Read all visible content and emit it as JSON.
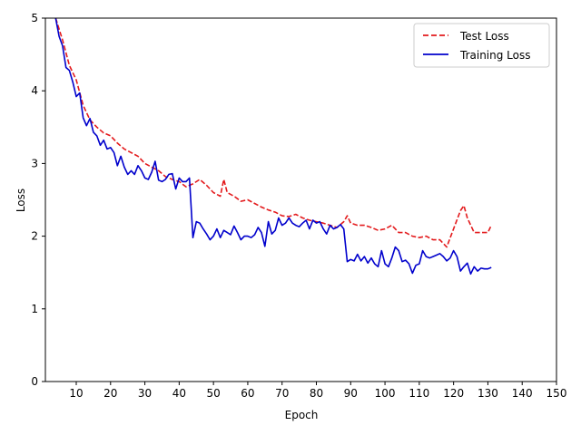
{
  "chart_data": {
    "type": "line",
    "title": "",
    "xlabel": "Epoch",
    "ylabel": "Loss",
    "xlim": [
      1,
      150
    ],
    "ylim": [
      0,
      5
    ],
    "xticks": [
      10,
      20,
      30,
      40,
      50,
      60,
      70,
      80,
      90,
      100,
      110,
      120,
      130,
      140,
      150
    ],
    "yticks": [
      0,
      1,
      2,
      3,
      4,
      5
    ],
    "grid": false,
    "legend_position": "top-right",
    "series": [
      {
        "name": "Test Loss",
        "color": "#e31a1c",
        "style": "dashed",
        "x": [
          4,
          6,
          8,
          10,
          12,
          14,
          16,
          18,
          20,
          22,
          24,
          26,
          28,
          30,
          32,
          34,
          36,
          38,
          40,
          42,
          44,
          46,
          48,
          50,
          52,
          53,
          54,
          56,
          58,
          60,
          62,
          64,
          66,
          68,
          70,
          72,
          74,
          76,
          78,
          80,
          82,
          84,
          86,
          88,
          89,
          90,
          92,
          94,
          96,
          98,
          100,
          102,
          104,
          106,
          108,
          110,
          112,
          114,
          116,
          118,
          120,
          122,
          123,
          124,
          126,
          128,
          130,
          131
        ],
        "values": [
          5.0,
          4.7,
          4.35,
          4.15,
          3.8,
          3.6,
          3.5,
          3.42,
          3.38,
          3.28,
          3.2,
          3.15,
          3.1,
          3.0,
          2.95,
          2.9,
          2.82,
          2.78,
          2.75,
          2.68,
          2.72,
          2.78,
          2.7,
          2.6,
          2.55,
          2.78,
          2.6,
          2.55,
          2.48,
          2.5,
          2.45,
          2.4,
          2.36,
          2.33,
          2.28,
          2.27,
          2.3,
          2.25,
          2.22,
          2.2,
          2.18,
          2.15,
          2.12,
          2.2,
          2.28,
          2.18,
          2.15,
          2.15,
          2.12,
          2.08,
          2.1,
          2.15,
          2.05,
          2.05,
          2.0,
          1.98,
          2.0,
          1.95,
          1.95,
          1.85,
          2.1,
          2.35,
          2.42,
          2.25,
          2.05,
          2.05,
          2.05,
          2.15
        ]
      },
      {
        "name": "Training Loss",
        "color": "#0000cc",
        "style": "solid",
        "x": [
          4,
          5,
          6,
          7,
          8,
          9,
          10,
          11,
          12,
          13,
          14,
          15,
          16,
          17,
          18,
          19,
          20,
          21,
          22,
          23,
          24,
          25,
          26,
          27,
          28,
          29,
          30,
          31,
          32,
          33,
          34,
          35,
          36,
          37,
          38,
          39,
          40,
          41,
          42,
          43,
          44,
          45,
          46,
          47,
          48,
          49,
          50,
          51,
          52,
          53,
          54,
          55,
          56,
          57,
          58,
          59,
          60,
          61,
          62,
          63,
          64,
          65,
          66,
          67,
          68,
          69,
          70,
          71,
          72,
          73,
          74,
          75,
          76,
          77,
          78,
          79,
          80,
          81,
          82,
          83,
          84,
          85,
          86,
          87,
          88,
          89,
          90,
          91,
          92,
          93,
          94,
          95,
          96,
          97,
          98,
          99,
          100,
          101,
          102,
          103,
          104,
          105,
          106,
          107,
          108,
          109,
          110,
          111,
          112,
          113,
          114,
          115,
          116,
          117,
          118,
          119,
          120,
          121,
          122,
          123,
          124,
          125,
          126,
          127,
          128,
          129,
          130,
          131
        ],
        "values": [
          5.0,
          4.75,
          4.62,
          4.32,
          4.28,
          4.12,
          3.92,
          3.97,
          3.63,
          3.52,
          3.62,
          3.43,
          3.38,
          3.25,
          3.32,
          3.2,
          3.22,
          3.15,
          2.97,
          3.1,
          2.95,
          2.85,
          2.9,
          2.85,
          2.97,
          2.9,
          2.8,
          2.78,
          2.88,
          3.03,
          2.77,
          2.75,
          2.78,
          2.85,
          2.86,
          2.65,
          2.8,
          2.75,
          2.75,
          2.8,
          1.98,
          2.2,
          2.18,
          2.1,
          2.03,
          1.95,
          2.0,
          2.1,
          1.98,
          2.08,
          2.05,
          2.02,
          2.14,
          2.05,
          1.95,
          2.0,
          2.0,
          1.98,
          2.02,
          2.12,
          2.05,
          1.86,
          2.2,
          2.03,
          2.08,
          2.25,
          2.15,
          2.18,
          2.25,
          2.18,
          2.15,
          2.13,
          2.18,
          2.22,
          2.1,
          2.22,
          2.18,
          2.2,
          2.1,
          2.03,
          2.15,
          2.1,
          2.12,
          2.16,
          2.1,
          1.65,
          1.68,
          1.66,
          1.75,
          1.66,
          1.72,
          1.63,
          1.7,
          1.62,
          1.58,
          1.8,
          1.62,
          1.58,
          1.7,
          1.85,
          1.8,
          1.65,
          1.67,
          1.62,
          1.49,
          1.6,
          1.62,
          1.8,
          1.72,
          1.7,
          1.72,
          1.74,
          1.76,
          1.72,
          1.66,
          1.7,
          1.8,
          1.72,
          1.52,
          1.58,
          1.63,
          1.48,
          1.58,
          1.52,
          1.56,
          1.55,
          1.55,
          1.57
        ]
      }
    ]
  }
}
